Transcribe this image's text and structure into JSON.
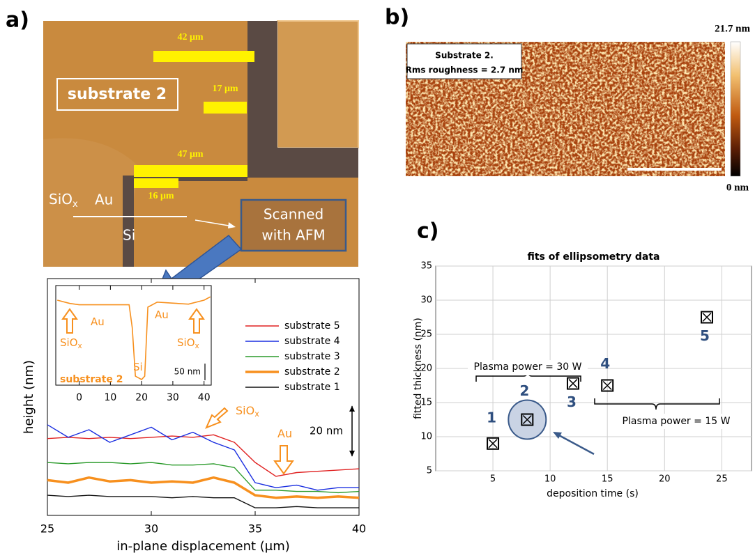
{
  "panel_labels": [
    "a)",
    "b)",
    "c)"
  ],
  "micrograph": {
    "label": "substrate 2",
    "scale_bars": [
      "42 μm",
      "17 μm",
      "47 μm",
      "16 μm"
    ],
    "sio": {
      "text": "SiO",
      "subscript": "x"
    },
    "au": "Au",
    "si": "Si",
    "callout": [
      "Scanned",
      "with AFM"
    ]
  },
  "afm_image": {
    "caption": [
      "Substrate 2.",
      "Rms roughness = 2.7 nm"
    ],
    "colorbar_max": "21.7 nm",
    "colorbar_min": "0 nm"
  },
  "chart_data": [
    {
      "type": "line",
      "xlabel": "in-plane displacement (μm)",
      "ylabel": "height (nm)",
      "x": [
        25,
        26,
        27,
        28,
        29,
        30,
        31,
        32,
        33,
        34,
        35,
        36,
        37,
        38,
        39,
        40
      ],
      "xlim": [
        25,
        40
      ],
      "xticks": [
        25,
        30,
        35,
        40
      ],
      "ylim": [
        0,
        94
      ],
      "series": [
        {
          "name": "substrate 5",
          "color": "#e02020",
          "line_width": 1.4,
          "values": [
            30.5,
            31,
            30.5,
            31,
            30.5,
            31,
            31.5,
            31,
            32,
            29,
            21,
            15.5,
            17,
            17.5,
            18,
            18.5
          ]
        },
        {
          "name": "substrate 4",
          "color": "#1a2ee0",
          "line_width": 1.4,
          "values": [
            36,
            31,
            34,
            29,
            32,
            35,
            30,
            33,
            29,
            26,
            13,
            11,
            12,
            10,
            11,
            11
          ]
        },
        {
          "name": "substrate 3",
          "color": "#2a9a2a",
          "line_width": 1.4,
          "values": [
            21,
            20.5,
            21,
            21,
            20.5,
            21,
            20,
            20,
            20.5,
            19,
            10,
            10,
            9.5,
            9.5,
            9,
            9.5
          ]
        },
        {
          "name": "substrate 2",
          "color": "#f7901e",
          "line_width": 3.5,
          "values": [
            14,
            13,
            15,
            13.5,
            14,
            13,
            13.5,
            13,
            15,
            13,
            8,
            7,
            7.5,
            7,
            7.5,
            7
          ]
        },
        {
          "name": "substrate 1",
          "color": "#111111",
          "line_width": 1.4,
          "values": [
            8,
            7.5,
            8,
            7.5,
            7.5,
            7.5,
            7,
            7.5,
            7,
            7,
            3,
            3,
            3.5,
            3,
            3,
            3
          ]
        }
      ],
      "scale_bar": {
        "value": 20,
        "label": "20 nm"
      },
      "annotations": [
        {
          "text": "SiO",
          "subscript": "x"
        },
        {
          "text": "Au"
        }
      ]
    },
    {
      "type": "line",
      "title": "substrate 2",
      "x": [
        -7,
        -3,
        0,
        10,
        16,
        17,
        18,
        20,
        21,
        22,
        25,
        35,
        40,
        42
      ],
      "xlim": [
        -7.5,
        42.3
      ],
      "xticks": [
        0,
        10,
        20,
        30,
        40
      ],
      "ylim": [
        0,
        300
      ],
      "series": [
        {
          "color": "#f7901e",
          "line_width": 1.6,
          "values": [
            256,
            246,
            242,
            242,
            242,
            173,
            27,
            17,
            27,
            235,
            250,
            244,
            256,
            266
          ]
        }
      ],
      "scale_bar": {
        "value": 50,
        "label": "50 nm"
      },
      "annotations": [
        {
          "text": "Au"
        },
        {
          "text": "Au"
        },
        {
          "text": "SiO",
          "subscript": "x"
        },
        {
          "text": "SiO",
          "subscript": "x"
        },
        {
          "text": "Si"
        }
      ]
    },
    {
      "type": "scatter",
      "title": "fits of ellipsometry data",
      "xlabel": "deposition time (s)",
      "ylabel": "fitted thickness (nm)",
      "x": [
        5,
        8,
        12,
        15,
        23.7
      ],
      "values": [
        9,
        12.5,
        17.8,
        17.5,
        27.5
      ],
      "labels": [
        "1",
        "2",
        "3",
        "4",
        "5"
      ],
      "xlim": [
        0,
        27.6
      ],
      "xticks": [
        5,
        10,
        15,
        20,
        25
      ],
      "ylim": [
        5,
        35
      ],
      "yticks": [
        5,
        10,
        15,
        20,
        25,
        30,
        35
      ],
      "grid": true,
      "annotations": [
        "Plasma power = 30 W",
        "Plasma power = 15 W"
      ]
    }
  ]
}
